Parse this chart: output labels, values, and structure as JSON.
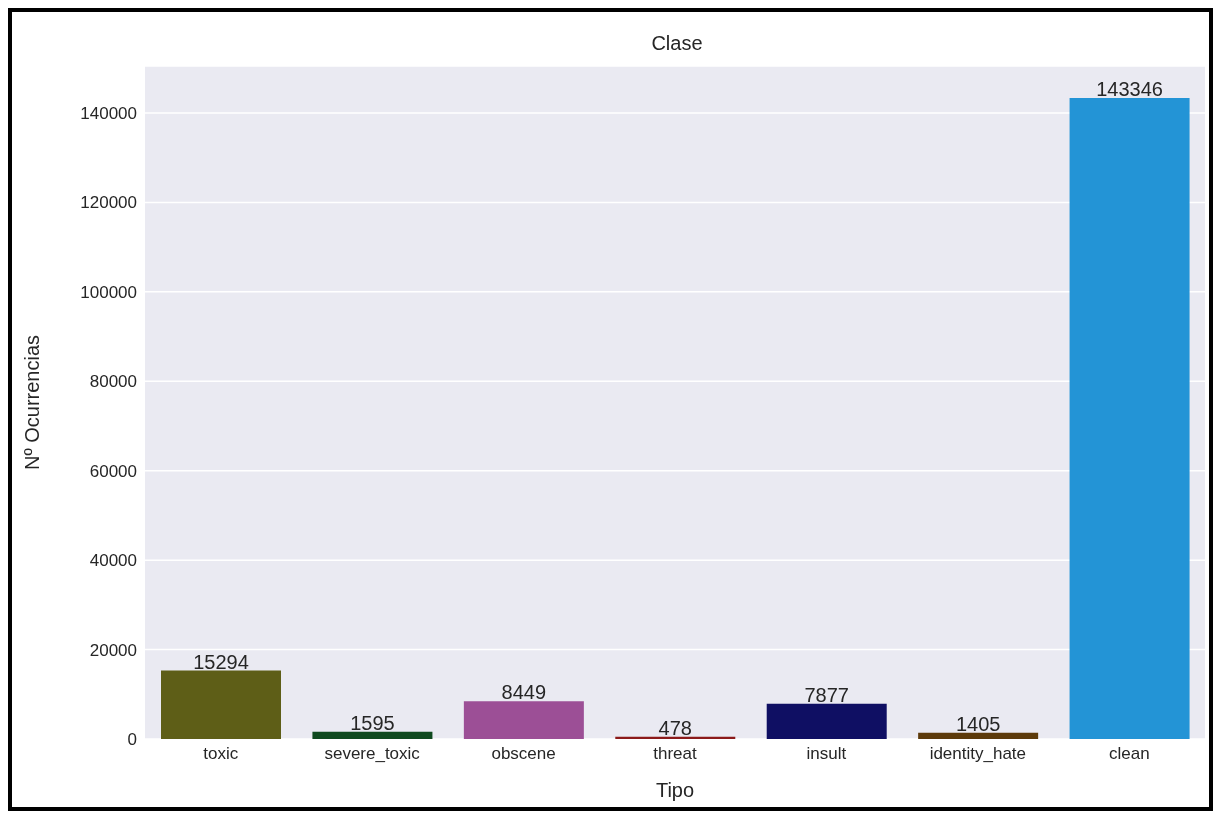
{
  "chart_data": {
    "type": "bar",
    "title": "Clase",
    "xlabel": "Tipo",
    "ylabel": "Nº Ocurrencias",
    "categories": [
      "toxic",
      "severe_toxic",
      "obscene",
      "threat",
      "insult",
      "identity_hate",
      "clean"
    ],
    "values": [
      15294,
      1595,
      8449,
      478,
      7877,
      1405,
      143346
    ],
    "colors": [
      "#5e5e17",
      "#0f4a1f",
      "#9c4f96",
      "#8b1a1a",
      "#0f0f63",
      "#5c3a0a",
      "#2394d6"
    ],
    "ylim": [
      0,
      150500
    ],
    "yticks": [
      0,
      20000,
      40000,
      60000,
      80000,
      100000,
      120000,
      140000
    ],
    "grid": "y",
    "data_labels": true
  }
}
